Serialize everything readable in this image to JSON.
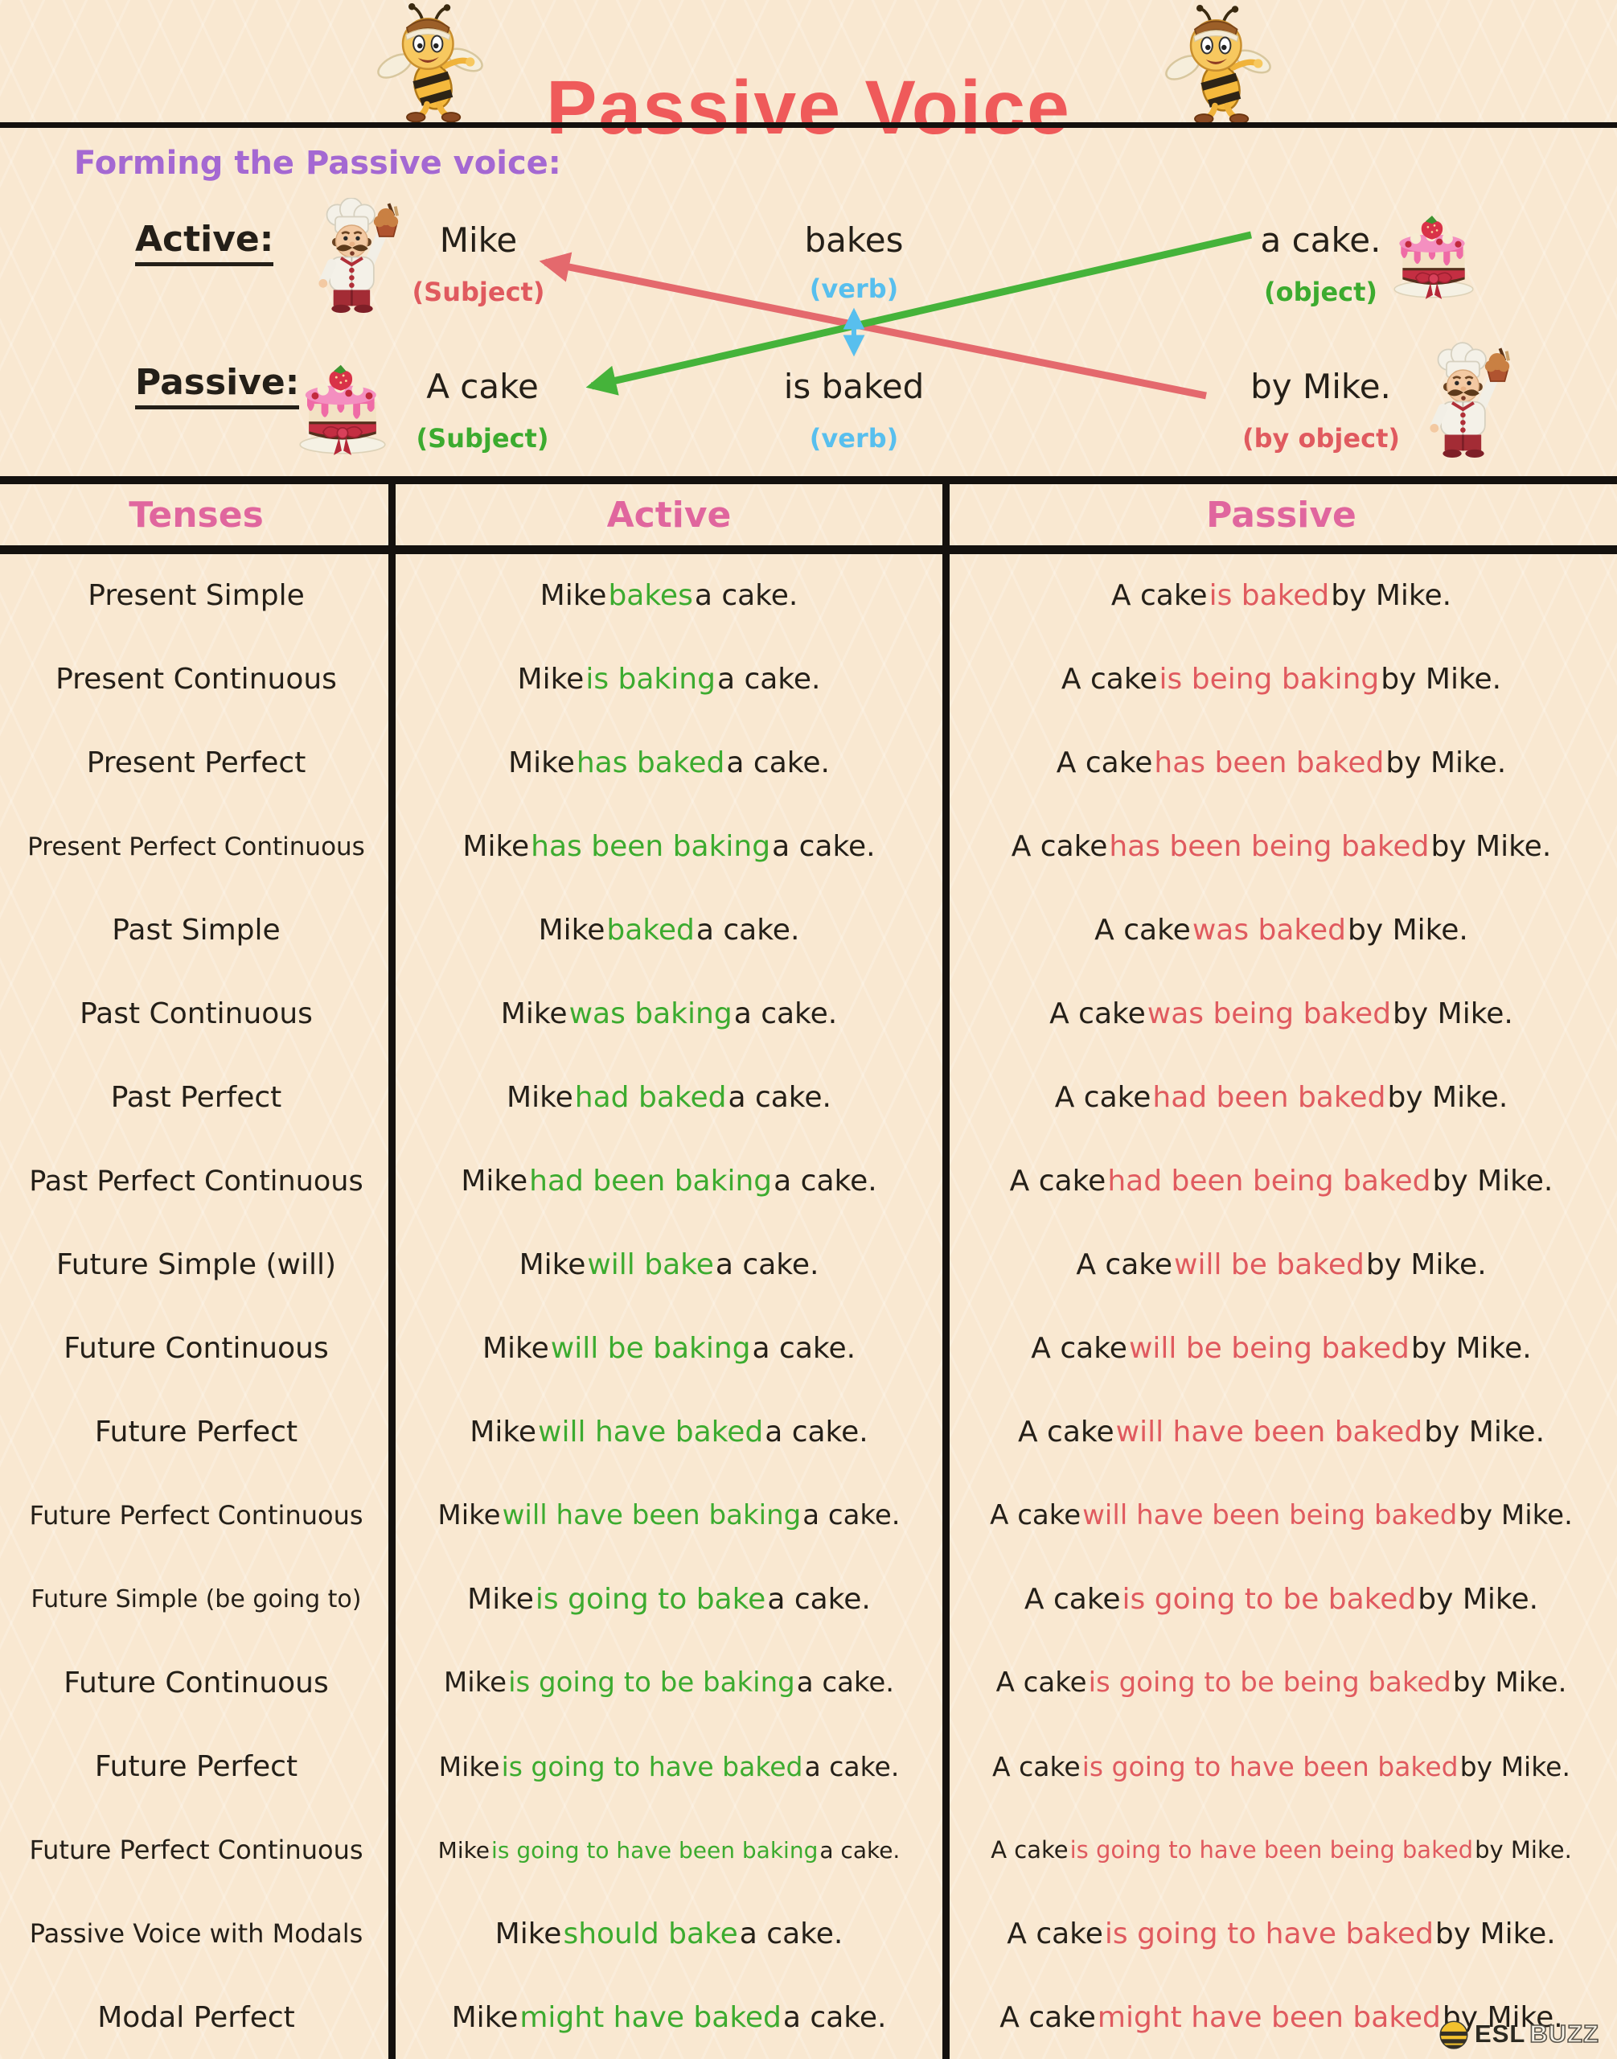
{
  "header": {
    "title": "Passive Voice"
  },
  "forming": {
    "heading": "Forming the Passive voice:",
    "active_label": "Active:",
    "passive_label": "Passive:",
    "active": {
      "subject": "Mike",
      "subject_note": "(Subject)",
      "verb": "bakes",
      "verb_note": "(verb)",
      "object": "a cake.",
      "object_note": "(object)"
    },
    "passive": {
      "subject": "A cake",
      "subject_note": "(Subject)",
      "verb": "is baked",
      "verb_note": "(verb)",
      "agent": "by Mike.",
      "agent_note": "(by object)"
    }
  },
  "table": {
    "headers": [
      "Tenses",
      "Active",
      "Passive"
    ],
    "active_frame": [
      "Mike",
      "a cake."
    ],
    "passive_frame": [
      "A cake",
      "by Mike."
    ],
    "rows": [
      {
        "tense": "Present Simple",
        "active_verb": "bakes",
        "passive_verb": "is baked"
      },
      {
        "tense": "Present Continuous",
        "active_verb": "is baking",
        "passive_verb": "is being baking"
      },
      {
        "tense": "Present Perfect",
        "active_verb": "has baked",
        "passive_verb": "has been baked"
      },
      {
        "tense": "Present Perfect Continuous",
        "active_verb": "has been baking",
        "passive_verb": "has been being baked"
      },
      {
        "tense": "Past Simple",
        "active_verb": "baked",
        "passive_verb": "was baked"
      },
      {
        "tense": "Past Continuous",
        "active_verb": "was baking",
        "passive_verb": "was being baked"
      },
      {
        "tense": "Past Perfect",
        "active_verb": "had baked",
        "passive_verb": "had been baked"
      },
      {
        "tense": "Past Perfect Continuous",
        "active_verb": "had been baking",
        "passive_verb": "had been being baked"
      },
      {
        "tense": "Future Simple (will)",
        "active_verb": "will bake",
        "passive_verb": "will be baked"
      },
      {
        "tense": "Future Continuous",
        "active_verb": "will be baking",
        "passive_verb": "will be being baked"
      },
      {
        "tense": "Future Perfect",
        "active_verb": "will have baked",
        "passive_verb": "will have been baked"
      },
      {
        "tense": "Future Perfect Continuous",
        "active_verb": "will have been baking",
        "passive_verb": "will have been being baked"
      },
      {
        "tense": "Future Simple (be going to)",
        "active_verb": "is going to bake",
        "passive_verb": "is going to be baked"
      },
      {
        "tense": "Future Continuous",
        "active_verb": "is going to be baking",
        "passive_verb": "is going to be being baked"
      },
      {
        "tense": "Future Perfect",
        "active_verb": "is going to have baked",
        "passive_verb": "is going to have been baked"
      },
      {
        "tense": "Future Perfect Continuous",
        "active_verb": "is going to have been baking",
        "passive_verb": "is going to have been being baked"
      },
      {
        "tense": "Passive Voice with Modals",
        "active_verb": "should bake",
        "passive_verb": "is going to have baked"
      },
      {
        "tense": "Modal Perfect",
        "active_verb": "might have baked",
        "passive_verb": "might have been baked"
      }
    ]
  },
  "footer": {
    "logo_esl": "ESL",
    "logo_buzz": "BUZZ"
  },
  "icons": {
    "bee": "bee-icon",
    "chef": "chef-icon",
    "cake": "cake-icon",
    "logo_bee": "bee-badge-icon"
  },
  "colors": {
    "background": "#f9e8d1",
    "title": "#ef5a5a",
    "purple": "#a468d2",
    "pink": "#e0669e",
    "green": "#3cab2f",
    "coral": "#e05a5f",
    "blue": "#58bfee",
    "ink": "#241f18",
    "line": "#14110e"
  }
}
